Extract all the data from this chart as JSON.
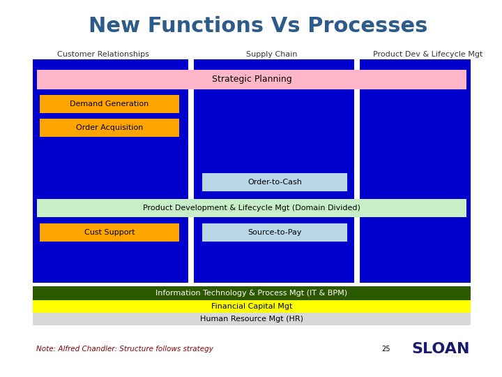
{
  "title": "New Functions Vs Processes",
  "title_color": "#2E5C8A",
  "title_fontsize": 22,
  "bg_color": "#FFFFFF",
  "col_labels": [
    "Customer Relationships",
    "Supply Chain",
    "Product Dev & Lifecycle Mgt"
  ],
  "col_label_color": "#333333",
  "col_label_fontsize": 8,
  "main_bg": "#0000CC",
  "strategic_planning": {
    "text": "Strategic Planning",
    "bg": "#FFB6C8",
    "text_color": "#000000",
    "fontsize": 9
  },
  "demand_gen": {
    "text": "Demand Generation",
    "bg": "#FFA500",
    "text_color": "#000000",
    "fontsize": 8
  },
  "order_acq": {
    "text": "Order Acquisition",
    "bg": "#FFA500",
    "text_color": "#000000",
    "fontsize": 8
  },
  "order_cash": {
    "text": "Order-to-Cash",
    "bg": "#B8D8E8",
    "text_color": "#000000",
    "fontsize": 8
  },
  "prod_dev": {
    "text": "Product Development & Lifecycle Mgt (Domain Divided)",
    "bg": "#C8EEC8",
    "text_color": "#000000",
    "fontsize": 8
  },
  "cust_support": {
    "text": "Cust Support",
    "bg": "#FFA500",
    "text_color": "#000000",
    "fontsize": 8
  },
  "source_pay": {
    "text": "Source-to-Pay",
    "bg": "#B8D8E8",
    "text_color": "#000000",
    "fontsize": 8
  },
  "it_bpm": {
    "text": "Information Technology & Process Mgt (IT & BPM)",
    "bg": "#2D5A00",
    "text_color": "#FFFFFF",
    "fontsize": 8
  },
  "fin_cap": {
    "text": "Financial Capital Mgt",
    "bg": "#FFFF00",
    "text_color": "#000000",
    "fontsize": 8
  },
  "hr": {
    "text": "Human Resource Mgt (HR)",
    "bg": "#D8D8D8",
    "text_color": "#000000",
    "fontsize": 8
  },
  "note_text": "Note: Alfred Chandler: Structure follows strategy",
  "note_fontsize": 7.5,
  "note_color": "#8B0000",
  "page_num": "25",
  "sloan_color_s": "#000000",
  "sloan_color_l": "#000000",
  "sloan_color_o": "#000000",
  "sloan_color_a": "#000000",
  "sloan_color_n": "#000000"
}
